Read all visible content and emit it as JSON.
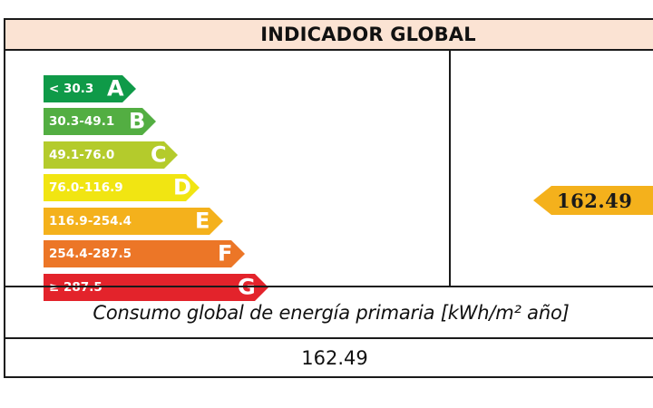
{
  "header": {
    "title": "INDICADOR GLOBAL"
  },
  "scale": {
    "bands": [
      {
        "letter": "A",
        "range": "< 30.3",
        "color": "#0f9a48"
      },
      {
        "letter": "B",
        "range": "30.3-49.1",
        "color": "#53ae42"
      },
      {
        "letter": "C",
        "range": "49.1-76.0",
        "color": "#b4cb2c"
      },
      {
        "letter": "D",
        "range": "76.0-116.9",
        "color": "#f1e512"
      },
      {
        "letter": "E",
        "range": "116.9-254.4",
        "color": "#f4b11c"
      },
      {
        "letter": "F",
        "range": "254.4-287.5",
        "color": "#ec7627"
      },
      {
        "letter": "G",
        "range": "≥ 287.5",
        "color": "#e3232b"
      }
    ]
  },
  "indicator": {
    "value": "162.49",
    "color": "#f4b11c"
  },
  "caption": "Consumo global de energía primaria [kWh/m² año]",
  "value_row": {
    "value": "162.49"
  }
}
